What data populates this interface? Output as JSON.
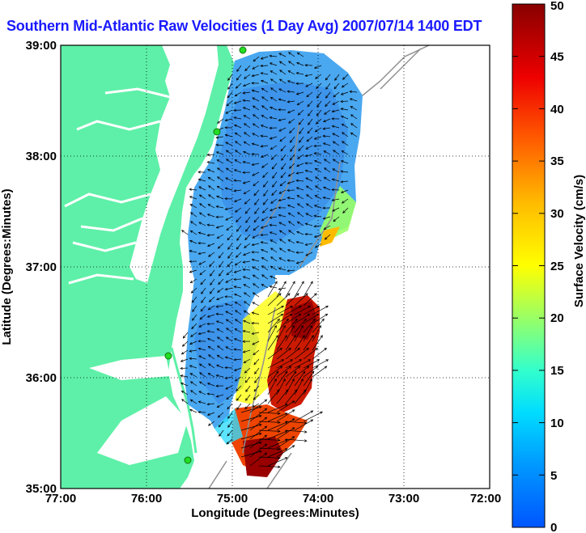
{
  "title": "Southern Mid-Atlantic Raw Velocities (1 Day Avg) 2007/07/14 1400 EDT",
  "map": {
    "xlabel": "Longitude (Degrees:Minutes)",
    "ylabel": "Latitude (Degrees:Minutes)",
    "x_ticks": [
      "77:00",
      "76:00",
      "75:00",
      "74:00",
      "73:00",
      "72:00"
    ],
    "y_ticks": [
      "39:00",
      "38:00",
      "37:00",
      "36:00",
      "35:00"
    ],
    "lon_range": [
      -77,
      -72
    ],
    "lat_range": [
      35,
      39
    ],
    "grid": "dotted",
    "land_color": "#5ef0a8",
    "water_color": "#ffffff",
    "station_color": "#22dd22"
  },
  "colorbar": {
    "label": "Surface Velocity (cm/s)",
    "ticks": [
      "0",
      "5",
      "10",
      "15",
      "20",
      "25",
      "30",
      "35",
      "40",
      "45",
      "50"
    ],
    "min": 0,
    "max": 50,
    "units": "cm/s"
  }
}
